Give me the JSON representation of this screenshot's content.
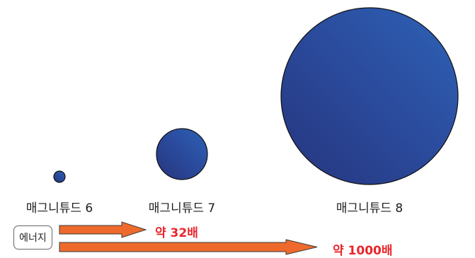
{
  "magnitudes": [
    {
      "label": "매그니튜드 6",
      "value": 6
    },
    {
      "label": "매그니튜드 7",
      "value": 7
    },
    {
      "label": "매그니튜드 8",
      "value": 8
    }
  ],
  "energy": {
    "label": "에너지",
    "arrows": [
      {
        "ratio_label": "약 32배"
      },
      {
        "ratio_label": "약 1000배"
      }
    ]
  },
  "colors": {
    "circle_dark": "#2a3b8a",
    "circle_light": "#2c5cb0",
    "arrow_fill": "#ee6a2c",
    "ratio_text": "#e8262c"
  }
}
